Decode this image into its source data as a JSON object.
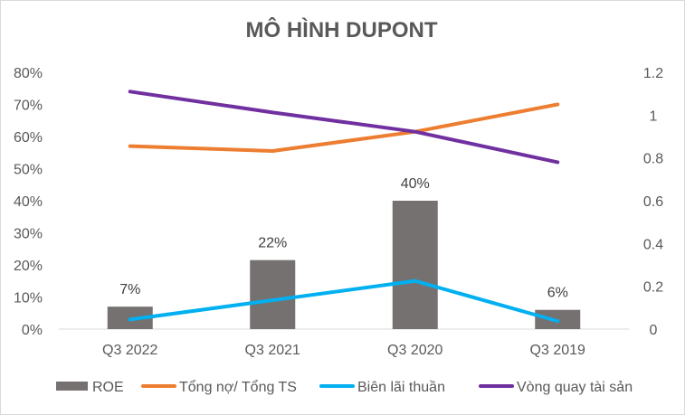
{
  "chart_data": {
    "type": "bar",
    "title": "MÔ HÌNH DUPONT",
    "categories": [
      "Q3 2022",
      "Q3 2021",
      "Q3 2020",
      "Q3 2019"
    ],
    "left_axis": {
      "ylim": [
        0,
        0.8
      ],
      "ticks": [
        "0%",
        "10%",
        "20%",
        "30%",
        "40%",
        "50%",
        "60%",
        "70%",
        "80%"
      ]
    },
    "right_axis": {
      "ylim": [
        0,
        1.2
      ],
      "ticks": [
        "0",
        "0.2",
        "0.4",
        "0.6",
        "0.8",
        "1",
        "1.2"
      ]
    },
    "grid": false,
    "legend_position": "bottom",
    "series": [
      {
        "name": "ROE",
        "kind": "bar",
        "axis": "left",
        "color": "#767171",
        "values": [
          0.07,
          0.215,
          0.4,
          0.06
        ],
        "labels": [
          "7%",
          "22%",
          "40%",
          "6%"
        ]
      },
      {
        "name": "Tổng nợ/ Tổng TS",
        "kind": "line",
        "axis": "left",
        "color": "#ED7D31",
        "values": [
          0.57,
          0.555,
          0.615,
          0.7
        ]
      },
      {
        "name": "Biên lãi thuần",
        "kind": "line",
        "axis": "left",
        "color": "#00B0F0",
        "values": [
          0.03,
          0.09,
          0.15,
          0.025
        ]
      },
      {
        "name": "Vòng quay tài sản",
        "kind": "line",
        "axis": "left",
        "color": "#7030A0",
        "values": [
          0.74,
          0.675,
          0.615,
          0.52
        ]
      }
    ]
  }
}
